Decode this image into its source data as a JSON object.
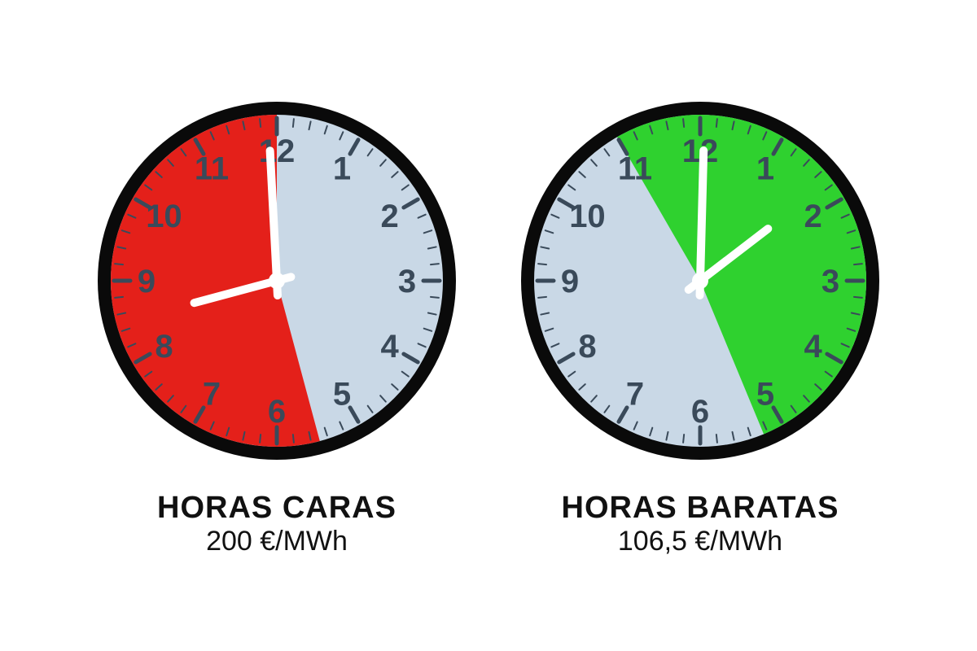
{
  "colors": {
    "background": "#ffffff",
    "face": "#c9d8e6",
    "bezel_outer": "#0a0a0a",
    "bezel_inner": "#1a1a1a",
    "tick": "#3a4a5a",
    "number": "#3a4a5a",
    "hand": "#ffffff",
    "sector_expensive": "#e4201a",
    "sector_cheap": "#2fd12f",
    "text": "#111111"
  },
  "typography": {
    "number_fontsize": 40,
    "title_fontsize": 38,
    "price_fontsize": 34,
    "font_family": "Arial, Helvetica, sans-serif"
  },
  "clock_geometry": {
    "radius": 220,
    "bezel_width": 16,
    "face_radius": 204,
    "number_radius": 160,
    "minute_tick_outer": 200,
    "minute_tick_inner": 190,
    "hour_tick_outer": 200,
    "hour_tick_inner": 180,
    "tick_stroke_minute": 2,
    "tick_stroke_hour": 5,
    "hour_hand_length": 105,
    "minute_hand_length": 160,
    "hand_stroke": 10,
    "hub_radius": 10
  },
  "clocks": [
    {
      "id": "expensive",
      "title": "HORAS CARAS",
      "price": "200 €/MWh",
      "sector_color_key": "sector_expensive",
      "sector_start_hour": 5.5,
      "sector_end_hour": 12,
      "hour_hand_at": 8.5,
      "minute_hand_at": 11.9
    },
    {
      "id": "cheap",
      "title": "HORAS BARATAS",
      "price": "106,5 €/MWh",
      "sector_color_key": "sector_cheap",
      "sector_start_hour": 11,
      "sector_end_hour": 5.25,
      "hour_hand_at": 1.75,
      "minute_hand_at": 12.05
    }
  ]
}
